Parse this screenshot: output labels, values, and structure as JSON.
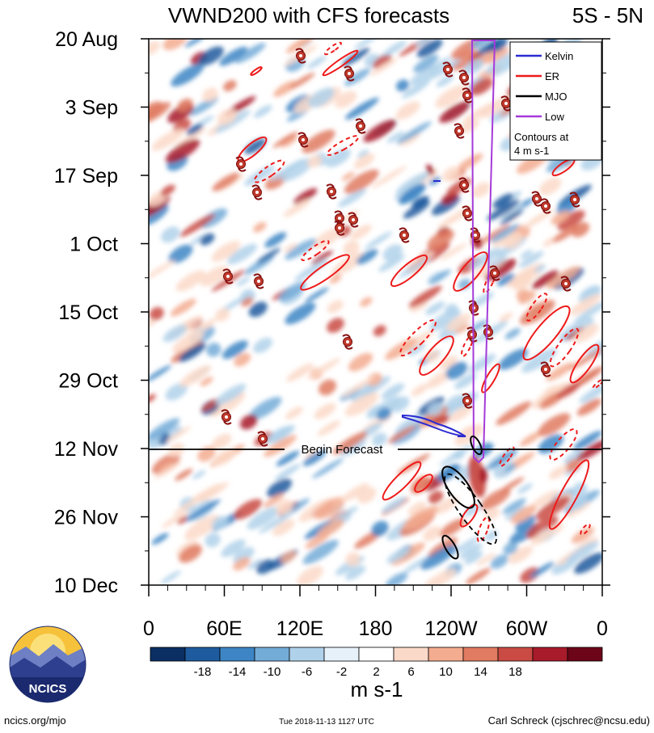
{
  "chart_data": {
    "type": "heatmap",
    "title": "VWND200 with CFS forecasts",
    "region": "5S - 5N",
    "y_tick_labels": [
      "20 Aug",
      "3 Sep",
      "17 Sep",
      "1 Oct",
      "15 Oct",
      "29 Oct",
      "12 Nov",
      "26 Nov",
      "10 Dec"
    ],
    "x_tick_labels": [
      "0",
      "60E",
      "120E",
      "180",
      "120W",
      "60W",
      "0"
    ],
    "x_range_deg_east": [
      0,
      360
    ],
    "forecast_marker": {
      "label": "Begin Forecast",
      "date": "12 Nov"
    },
    "colorbar": {
      "units": "m s-1",
      "levels": [
        -18,
        -14,
        -10,
        -6,
        -2,
        2,
        6,
        10,
        14,
        18
      ],
      "tick_labels": [
        "-18",
        "-14",
        "-10",
        "-6",
        "-2",
        "2",
        "6",
        "10",
        "14",
        "18"
      ],
      "colors": [
        "#0b2f63",
        "#1e5b9e",
        "#3d85c4",
        "#74acd8",
        "#b0d1ea",
        "#e6f1f9",
        "#ffffff",
        "#fbd9c8",
        "#f3ac8f",
        "#e17b61",
        "#c94b43",
        "#a81b2a",
        "#6b0517"
      ]
    },
    "legend": {
      "entries": [
        {
          "name": "Kelvin",
          "color": "#2b2bd1"
        },
        {
          "name": "ER",
          "color": "#ee1a1a"
        },
        {
          "name": "MJO",
          "color": "#000000"
        },
        {
          "name": "Low",
          "color": "#a53ad9"
        }
      ],
      "note_line1": "Contours at",
      "note_line2": "4 m s-1"
    }
  },
  "footer": {
    "left": "ncics.org/mjo",
    "center": "Tue 2018-11-13 1127 UTC",
    "right": "Carl Schreck (cjschrec@ncsu.edu)"
  },
  "logo": {
    "text": "NCICS"
  }
}
